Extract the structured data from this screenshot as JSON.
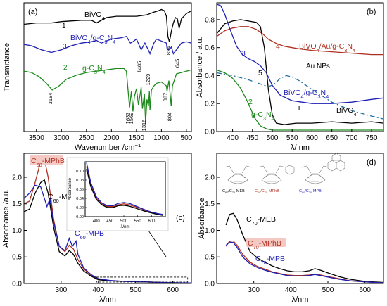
{
  "chart_data": [
    {
      "panel": "(a)",
      "type": "line",
      "xlabel": "Wavenumber /cm",
      "xlabel_sup": "−1",
      "ylabel": "Transmittance",
      "xlim": [
        3750,
        400
      ],
      "xticks": [
        3500,
        3000,
        2500,
        2000,
        1500,
        1000,
        500
      ],
      "series": [
        {
          "name": "BiVO",
          "sub": "4",
          "label": "1",
          "color": "#000000",
          "x": [
            3750,
            3500,
            3200,
            3000,
            2600,
            2400,
            2300,
            2100,
            1900,
            1700,
            1500,
            1300,
            1150,
            1060,
            1000,
            940,
            900,
            870,
            840,
            824,
            800,
            760,
            720,
            680,
            645,
            600,
            500,
            400
          ],
          "y": [
            2.0,
            2.05,
            2.05,
            2.1,
            2.15,
            2.15,
            2.05,
            2.25,
            2.3,
            2.3,
            2.3,
            2.35,
            2.45,
            2.5,
            2.55,
            2.5,
            2.3,
            1.55,
            1.35,
            1.5,
            1.75,
            2.05,
            2.25,
            2.2,
            1.85,
            2.2,
            2.4,
            2.5
          ]
        },
        {
          "name": "BiVO",
          "sub": "4",
          "name2": "/g-C",
          "sub2": "3",
          "name3": "N",
          "sub3": "4",
          "label": "3",
          "color": "#1f1fb4",
          "x": [
            3750,
            3600,
            3400,
            3200,
            3000,
            2800,
            2600,
            2400,
            2300,
            2200,
            2000,
            1800,
            1700,
            1620,
            1570,
            1500,
            1405,
            1330,
            1250,
            1229,
            1150,
            1100,
            900,
            887,
            850,
            800,
            760,
            700,
            600,
            500,
            400
          ],
          "y": [
            1.25,
            1.2,
            1.05,
            0.95,
            1.05,
            1.2,
            1.3,
            1.35,
            1.4,
            1.3,
            1.45,
            1.5,
            1.55,
            1.3,
            1.35,
            1.45,
            1.05,
            1.3,
            1.0,
            0.9,
            1.3,
            1.45,
            1.3,
            1.1,
            1.05,
            1.15,
            0.9,
            1.05,
            1.3,
            1.35,
            1.3
          ]
        },
        {
          "name": "g-C",
          "sub": "3",
          "name2": "N",
          "sub2": "4",
          "label": "2",
          "color": "#1e8a1e",
          "x": [
            3750,
            3600,
            3450,
            3300,
            3184,
            3050,
            2900,
            2700,
            2500,
            2300,
            2100,
            1900,
            1750,
            1700,
            1637,
            1600,
            1569,
            1540,
            1500,
            1460,
            1420,
            1405,
            1380,
            1340,
            1316,
            1290,
            1260,
            1240,
            1229,
            1200,
            1150,
            1100,
            1000,
            900,
            887,
            850,
            804,
            780,
            700,
            600,
            500,
            400
          ],
          "y": [
            0.25,
            0.2,
            0.05,
            -0.2,
            -0.45,
            -0.3,
            -0.05,
            0.1,
            0.2,
            0.25,
            0.3,
            0.35,
            0.35,
            0.25,
            -1.1,
            -0.5,
            -1.25,
            -0.7,
            -0.4,
            -1.0,
            -0.55,
            -0.35,
            -1.15,
            -0.6,
            -1.7,
            -0.8,
            -1.05,
            -0.5,
            -1.2,
            -0.45,
            -0.3,
            -0.2,
            -0.15,
            -0.3,
            -0.5,
            -0.1,
            -1.05,
            -0.3,
            0.15,
            0.2,
            0.25,
            0.3
          ]
        }
      ],
      "annotations": [
        "3184",
        "1637",
        "1569",
        "1405",
        "1316",
        "1229",
        "887",
        "804",
        "824",
        "645"
      ]
    },
    {
      "panel": "(b)",
      "type": "line",
      "xlabel": "λ/ nm",
      "ylabel": "Absorbance / a.u.",
      "xlim": [
        360,
        780
      ],
      "ylim": [
        0,
        0.92
      ],
      "xticks": [
        400,
        450,
        500,
        550,
        600,
        650,
        700,
        750
      ],
      "yticks": [
        0.0,
        0.2,
        0.4,
        0.6,
        0.8
      ],
      "series": [
        {
          "name": "BiVO",
          "sub": "4",
          "name2": "/Au/g-C",
          "sub2": "3",
          "name3": "N",
          "sub3": "4",
          "label": "4",
          "color": "#b03020",
          "x": [
            360,
            380,
            400,
            420,
            440,
            460,
            475,
            490,
            510,
            530,
            550,
            570,
            600,
            650,
            700,
            750,
            780
          ],
          "y": [
            0.68,
            0.72,
            0.74,
            0.75,
            0.75,
            0.73,
            0.7,
            0.66,
            0.63,
            0.61,
            0.6,
            0.59,
            0.58,
            0.57,
            0.56,
            0.55,
            0.55
          ]
        },
        {
          "name": "BiVO",
          "sub": "4",
          "name2": "/g-C",
          "sub2": "3",
          "name3": "N",
          "sub3": "4",
          "label": "3",
          "color": "#1f1fb4",
          "x": [
            360,
            370,
            380,
            395,
            410,
            425,
            440,
            455,
            470,
            485,
            500,
            520,
            550,
            600,
            650,
            700,
            750,
            780
          ],
          "y": [
            0.91,
            0.9,
            0.84,
            0.72,
            0.61,
            0.55,
            0.52,
            0.5,
            0.47,
            0.42,
            0.33,
            0.26,
            0.22,
            0.2,
            0.2,
            0.21,
            0.23,
            0.24
          ]
        },
        {
          "name": "BiVO",
          "sub": "4",
          "label": "1",
          "color": "#000000",
          "x": [
            360,
            380,
            400,
            420,
            440,
            460,
            470,
            480,
            490,
            500,
            510,
            530,
            560,
            600,
            650,
            700,
            750,
            780
          ],
          "y": [
            0.7,
            0.77,
            0.79,
            0.8,
            0.79,
            0.78,
            0.75,
            0.6,
            0.3,
            0.12,
            0.06,
            0.05,
            0.06,
            0.06,
            0.07,
            0.06,
            0.07,
            0.06
          ]
        },
        {
          "name": "g-C",
          "sub": "3",
          "name2": "N",
          "sub2": "4",
          "label": "2",
          "color": "#1e8a1e",
          "x": [
            360,
            380,
            400,
            420,
            440,
            455,
            470,
            485,
            500,
            520,
            560,
            600,
            700,
            780
          ],
          "y": [
            0.44,
            0.42,
            0.38,
            0.31,
            0.2,
            0.1,
            0.04,
            0.02,
            0.01,
            0.01,
            0.01,
            0.01,
            0.01,
            0.01
          ]
        },
        {
          "name": "Au NPs",
          "label": "5",
          "color": "#1f6ea0",
          "dash": "7,3,2,3",
          "x": [
            360,
            400,
            440,
            470,
            490,
            505,
            520,
            535,
            550,
            570,
            600,
            650,
            700,
            750,
            780
          ],
          "y": [
            0.42,
            0.4,
            0.37,
            0.34,
            0.32,
            0.34,
            0.38,
            0.4,
            0.39,
            0.36,
            0.3,
            0.21,
            0.15,
            0.11,
            0.09
          ]
        }
      ]
    },
    {
      "panel": "(c)",
      "type": "line",
      "xlabel": "λ/nm",
      "ylabel": "Absorbance /a.u.",
      "xlim": [
        200,
        650
      ],
      "ylim": [
        0,
        2.45
      ],
      "xticks": [
        300,
        400,
        500,
        600
      ],
      "yticks": [
        0.0,
        0.5,
        1.0,
        1.5,
        2.0
      ],
      "series": [
        {
          "name": "C",
          "sub": "60",
          "name2": "-MPhB",
          "color": "#b03020",
          "x": [
            200,
            215,
            230,
            245,
            255,
            265,
            280,
            295,
            310,
            322,
            333,
            345,
            360,
            380,
            400,
            430,
            470,
            520,
            570,
            620,
            650
          ],
          "y": [
            1.5,
            1.55,
            1.9,
            2.3,
            2.35,
            2.0,
            1.2,
            0.7,
            0.6,
            0.72,
            0.65,
            0.45,
            0.28,
            0.16,
            0.08,
            0.05,
            0.04,
            0.03,
            0.02,
            0.01,
            0.01
          ]
        },
        {
          "name": "C",
          "sub": "60",
          "name2": "-MEB",
          "color": "#000000",
          "x": [
            200,
            215,
            230,
            245,
            255,
            265,
            280,
            295,
            310,
            322,
            333,
            345,
            360,
            380,
            400,
            430,
            470,
            520,
            570,
            620,
            650
          ],
          "y": [
            1.35,
            1.4,
            1.7,
            1.9,
            1.95,
            1.7,
            1.05,
            0.6,
            0.52,
            0.62,
            0.55,
            0.38,
            0.24,
            0.14,
            0.07,
            0.05,
            0.04,
            0.03,
            0.02,
            0.01,
            0.01
          ]
        },
        {
          "name": "C",
          "sub": "60",
          "name2": "-MPB",
          "color": "#1f1fb4",
          "x": [
            200,
            215,
            230,
            245,
            255,
            262,
            270,
            280,
            295,
            310,
            322,
            330,
            340,
            345,
            360,
            380,
            400,
            430,
            470,
            520,
            570,
            620,
            650
          ],
          "y": [
            1.6,
            1.7,
            1.85,
            1.82,
            1.6,
            1.45,
            1.6,
            1.15,
            0.7,
            0.62,
            0.85,
            0.7,
            0.8,
            0.55,
            0.3,
            0.17,
            0.09,
            0.06,
            0.04,
            0.03,
            0.02,
            0.01,
            0.01
          ]
        }
      ],
      "inset": {
        "ylabel": "Absorbance",
        "xlabel": "λ/nm",
        "xlim": [
          360,
          650
        ],
        "ylim": [
          0,
          0.12
        ],
        "xticks": [
          400,
          450,
          500,
          550,
          600
        ],
        "yticks": [
          0.0,
          0.02,
          0.04,
          0.06,
          0.08,
          0.1
        ],
        "series": [
          {
            "color": "#b03020",
            "x": [
              365,
              380,
              400,
              420,
              440,
              460,
              480,
              500,
              520,
              540,
              560,
              580,
              600,
              620,
              640
            ],
            "y": [
              0.11,
              0.07,
              0.04,
              0.028,
              0.022,
              0.022,
              0.026,
              0.028,
              0.026,
              0.022,
              0.018,
              0.013,
              0.009,
              0.006,
              0.004
            ]
          },
          {
            "color": "#000000",
            "x": [
              365,
              380,
              400,
              420,
              440,
              460,
              480,
              500,
              520,
              540,
              560,
              580,
              600,
              620,
              640
            ],
            "y": [
              0.105,
              0.066,
              0.038,
              0.026,
              0.02,
              0.02,
              0.024,
              0.025,
              0.023,
              0.019,
              0.015,
              0.011,
              0.008,
              0.005,
              0.003
            ]
          },
          {
            "color": "#1f1fb4",
            "x": [
              365,
              380,
              400,
              420,
              440,
              460,
              480,
              500,
              520,
              540,
              560,
              580,
              600,
              620,
              640
            ],
            "y": [
              0.118,
              0.075,
              0.044,
              0.03,
              0.024,
              0.024,
              0.029,
              0.031,
              0.029,
              0.024,
              0.019,
              0.014,
              0.01,
              0.007,
              0.005
            ]
          }
        ]
      }
    },
    {
      "panel": "(d)",
      "type": "line",
      "xlabel": "λ/nm",
      "ylabel": "Absorbance",
      "xlim": [
        200,
        650
      ],
      "ylim": [
        0,
        2.45
      ],
      "xticks": [
        300,
        400,
        500,
        600
      ],
      "yticks": [
        0.0,
        0.5,
        1.0,
        1.5,
        2.0
      ],
      "series": [
        {
          "name": "C",
          "sub": "70",
          "name2": "-MEB",
          "color": "#000000",
          "x": [
            225,
            235,
            245,
            255,
            270,
            290,
            310,
            330,
            350,
            370,
            390,
            410,
            430,
            450,
            465,
            480,
            500,
            530,
            560,
            600,
            650
          ],
          "y": [
            1.1,
            1.3,
            1.32,
            1.2,
            0.92,
            0.6,
            0.48,
            0.4,
            0.33,
            0.28,
            0.24,
            0.22,
            0.22,
            0.24,
            0.28,
            0.25,
            0.2,
            0.13,
            0.08,
            0.04,
            0.02
          ]
        },
        {
          "name": "C",
          "sub": "70",
          "name2": "-MPhB",
          "color": "#b03020",
          "x": [
            225,
            235,
            245,
            255,
            270,
            290,
            310,
            330,
            350,
            370,
            390,
            410,
            430,
            450,
            465,
            480,
            500,
            530,
            560,
            600,
            650
          ],
          "y": [
            0.7,
            0.8,
            0.8,
            0.72,
            0.55,
            0.4,
            0.32,
            0.27,
            0.22,
            0.19,
            0.16,
            0.15,
            0.15,
            0.16,
            0.18,
            0.16,
            0.13,
            0.09,
            0.05,
            0.03,
            0.01
          ]
        },
        {
          "name": "C",
          "sub": "70",
          "name2": "-MPB",
          "color": "#1f1fb4",
          "x": [
            225,
            235,
            245,
            255,
            270,
            290,
            310,
            330,
            350,
            370,
            390,
            410,
            430,
            450,
            465,
            480,
            500,
            530,
            560,
            600,
            650
          ],
          "y": [
            0.72,
            0.78,
            0.77,
            0.68,
            0.5,
            0.37,
            0.3,
            0.25,
            0.21,
            0.18,
            0.15,
            0.14,
            0.14,
            0.15,
            0.17,
            0.15,
            0.12,
            0.08,
            0.05,
            0.03,
            0.01
          ]
        }
      ],
      "structure_labels": [
        {
          "name": "C",
          "sub": "60",
          "mid": "/C",
          "sub2": "70",
          "tail": "-MEB",
          "color": "#000000"
        },
        {
          "name": "C",
          "sub": "60",
          "mid": "/C",
          "sub2": "70",
          "tail": "-MPhB",
          "color": "#b03020"
        },
        {
          "name": "C",
          "sub": "60",
          "mid": "/C",
          "sub2": "70",
          "tail": "-MPB",
          "color": "#1f1fb4"
        }
      ]
    }
  ]
}
